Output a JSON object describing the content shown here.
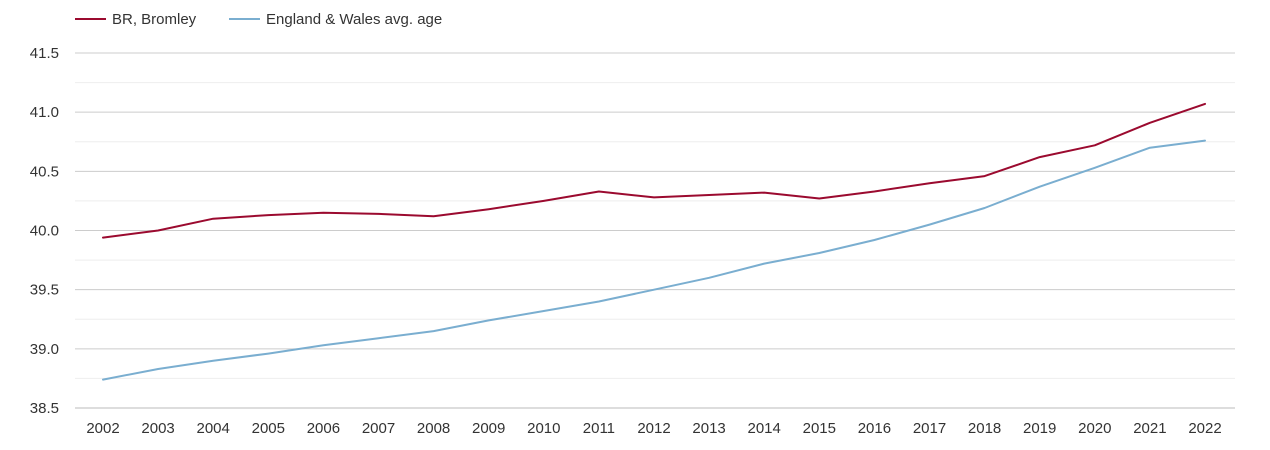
{
  "chart_data": {
    "type": "line",
    "title": "",
    "xlabel": "",
    "ylabel": "",
    "x": [
      "2002",
      "2003",
      "2004",
      "2005",
      "2006",
      "2007",
      "2008",
      "2009",
      "2010",
      "2011",
      "2012",
      "2013",
      "2014",
      "2015",
      "2016",
      "2017",
      "2018",
      "2019",
      "2020",
      "2021",
      "2022"
    ],
    "ylim": [
      38.5,
      41.5
    ],
    "yticks": [
      "38.5",
      "39.0",
      "39.5",
      "40.0",
      "40.5",
      "41.0",
      "41.5"
    ],
    "grid": true,
    "legend_position": "top-left",
    "series": [
      {
        "name": "BR, Bromley",
        "color": "#9b0a2f",
        "values": [
          39.94,
          40.0,
          40.1,
          40.13,
          40.15,
          40.14,
          40.12,
          40.18,
          40.25,
          40.33,
          40.28,
          40.3,
          40.32,
          40.27,
          40.33,
          40.4,
          40.46,
          40.62,
          40.72,
          40.91,
          41.07
        ]
      },
      {
        "name": "England & Wales avg. age",
        "color": "#7aaed0",
        "values": [
          38.74,
          38.83,
          38.9,
          38.96,
          39.03,
          39.09,
          39.15,
          39.24,
          39.32,
          39.4,
          39.5,
          39.6,
          39.72,
          39.81,
          39.92,
          40.05,
          40.19,
          40.37,
          40.53,
          40.7,
          40.76
        ]
      }
    ]
  }
}
